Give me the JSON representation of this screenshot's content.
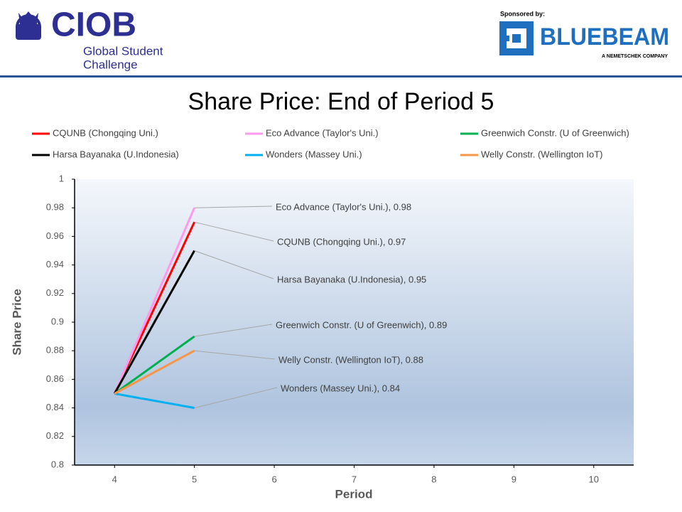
{
  "header": {
    "logo": "CIOB",
    "tagline": [
      "Global Student",
      "Challenge"
    ],
    "sponsor_label": "Sponsored by:",
    "sponsor": "BLUEBEAM",
    "sponsor_note": "A NEMETSCHEK COMPANY"
  },
  "chart_data": {
    "type": "line",
    "title": "Share Price: End of Period 5",
    "x_label": "Period",
    "y_label": "Share Price",
    "x": [
      4,
      5,
      6,
      7,
      8,
      9,
      10
    ],
    "xlim": [
      3.5,
      10.5
    ],
    "xticks": [
      4,
      5,
      6,
      7,
      8,
      9,
      10
    ],
    "ylim": [
      0.8,
      1
    ],
    "yticks": [
      0.8,
      0.82,
      0.84,
      0.86,
      0.88,
      0.9,
      0.92,
      0.94,
      0.96,
      0.98,
      1
    ],
    "legend": "top",
    "series": [
      {
        "name": "CQUNB (Chongqing Uni.)",
        "color": "#ff0000",
        "values": [
          0.85,
          0.97,
          null,
          null,
          null,
          null,
          null
        ],
        "value_labels": [
          null,
          "CQUNB (Chongqing Uni.), 0.97",
          null,
          null,
          null,
          null,
          null
        ]
      },
      {
        "name": "Eco Advance (Taylor's Uni.)",
        "color": "#ff99ee",
        "values": [
          0.85,
          0.98,
          null,
          null,
          null,
          null,
          null
        ],
        "value_labels": [
          null,
          "Eco Advance (Taylor's Uni.), 0.98",
          null,
          null,
          null,
          null,
          null
        ]
      },
      {
        "name": "Greenwich Constr. (U of Greenwich)",
        "color": "#00b050",
        "values": [
          0.85,
          0.89,
          null,
          null,
          null,
          null,
          null
        ],
        "value_labels": [
          null,
          "Greenwich Constr. (U of Greenwich), 0.89",
          null,
          null,
          null,
          null,
          null
        ]
      },
      {
        "name": "Harsa Bayanaka (U.Indonesia)",
        "color": "#000000",
        "values": [
          0.85,
          0.95,
          null,
          null,
          null,
          null,
          null
        ],
        "value_labels": [
          null,
          "Harsa Bayanaka (U.Indonesia), 0.95",
          null,
          null,
          null,
          null,
          null
        ]
      },
      {
        "name": "Wonders (Massey Uni.)",
        "color": "#00b0f0",
        "values": [
          0.85,
          0.84,
          null,
          null,
          null,
          null,
          null
        ],
        "value_labels": [
          null,
          "Wonders (Massey Uni.), 0.84",
          null,
          null,
          null,
          null,
          null
        ]
      },
      {
        "name": "Welly Constr. (Wellington IoT)",
        "color": "#f79646",
        "values": [
          0.85,
          0.88,
          null,
          null,
          null,
          null,
          null
        ],
        "value_labels": [
          null,
          "Welly Constr. (Wellington IoT), 0.88",
          null,
          null,
          null,
          null,
          null
        ]
      }
    ]
  }
}
